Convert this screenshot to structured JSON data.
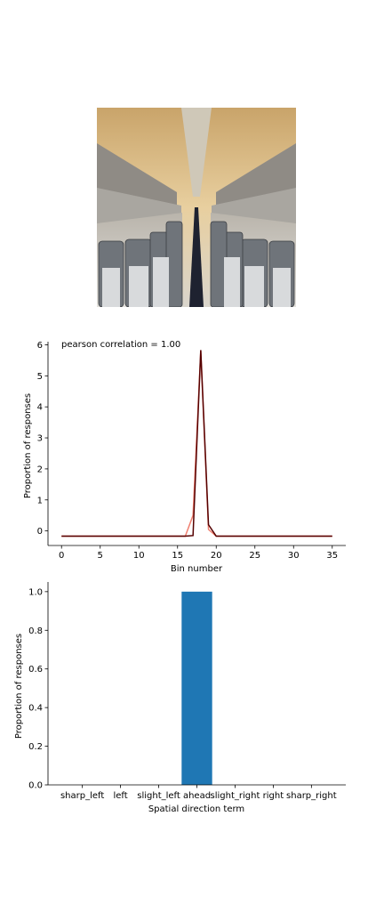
{
  "chart_data": [
    {
      "type": "line",
      "title": "",
      "annotation": "pearson correlation = 1.00",
      "xlabel": "Bin number",
      "ylabel": "Proportion of responses",
      "xlim": [
        -1.75,
        36.75
      ],
      "ylim": [
        -0.47,
        6.1
      ],
      "xticks": [
        0,
        5,
        10,
        15,
        20,
        25,
        30,
        35
      ],
      "yticks": [
        0,
        1,
        2,
        3,
        4,
        5,
        6
      ],
      "x": [
        0,
        1,
        2,
        3,
        4,
        5,
        6,
        7,
        8,
        9,
        10,
        11,
        12,
        13,
        14,
        15,
        16,
        17,
        18,
        19,
        20,
        21,
        22,
        23,
        24,
        25,
        26,
        27,
        28,
        29,
        30,
        31,
        32,
        33,
        34,
        35
      ],
      "series": [
        {
          "color": "#f08070",
          "values": [
            -0.17,
            -0.17,
            -0.17,
            -0.17,
            -0.17,
            -0.17,
            -0.17,
            -0.17,
            -0.17,
            -0.17,
            -0.17,
            -0.17,
            -0.17,
            -0.17,
            -0.17,
            -0.17,
            -0.17,
            0.5,
            5.8,
            0.05,
            -0.17,
            -0.17,
            -0.17,
            -0.17,
            -0.17,
            -0.17,
            -0.17,
            -0.17,
            -0.17,
            -0.17,
            -0.17,
            -0.17,
            -0.17,
            -0.17,
            -0.17,
            -0.17
          ]
        },
        {
          "color": "#550000",
          "values": [
            -0.17,
            -0.17,
            -0.17,
            -0.17,
            -0.17,
            -0.17,
            -0.17,
            -0.17,
            -0.17,
            -0.17,
            -0.17,
            -0.17,
            -0.17,
            -0.17,
            -0.17,
            -0.17,
            -0.17,
            -0.15,
            5.83,
            0.2,
            -0.17,
            -0.17,
            -0.17,
            -0.17,
            -0.17,
            -0.17,
            -0.17,
            -0.17,
            -0.17,
            -0.17,
            -0.17,
            -0.17,
            -0.17,
            -0.17,
            -0.17,
            -0.17
          ]
        }
      ]
    },
    {
      "type": "bar",
      "title": "",
      "xlabel": "Spatial direction term",
      "ylabel": "Proportion of responses",
      "ylim": [
        0,
        1.05
      ],
      "yticks": [
        "0.0",
        "0.2",
        "0.4",
        "0.6",
        "0.8",
        "1.0"
      ],
      "categories": [
        "sharp_left",
        "left",
        "slight_left",
        "ahead",
        "slight_right",
        "right",
        "sharp_right"
      ],
      "values": [
        0,
        0,
        0,
        1.0,
        0,
        0,
        0
      ],
      "color": "#1f77b4"
    }
  ]
}
